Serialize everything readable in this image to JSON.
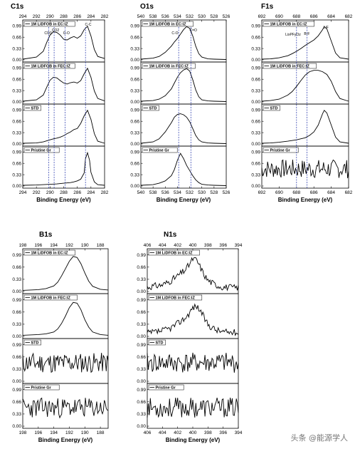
{
  "watermark": "头条 @能源学人",
  "chart_data": [
    {
      "type": "line",
      "element": "C1s",
      "x_range": [
        294,
        282
      ],
      "top_ticks": [
        294,
        292,
        290,
        288,
        286,
        284,
        282
      ],
      "bottom_ticks": [
        294,
        292,
        290,
        288,
        286,
        284,
        282
      ],
      "xlabel": "Binding Energy (eV)",
      "panels": [
        {
          "legend": "1M LiDFOB in EC:IZ",
          "ylim": [
            0,
            1.1
          ],
          "yticks": [
            "0.99",
            "0.66",
            "0.33",
            "0.00"
          ],
          "x": [
            294,
            292,
            291,
            290.5,
            290,
            289.5,
            289,
            288.5,
            288,
            287.5,
            287,
            286.5,
            286,
            285.5,
            285,
            284.5,
            284,
            283.5,
            283,
            282
          ],
          "y": [
            0.02,
            0.08,
            0.25,
            0.5,
            0.72,
            0.82,
            0.8,
            0.72,
            0.6,
            0.58,
            0.64,
            0.68,
            0.63,
            0.7,
            0.88,
            0.98,
            0.7,
            0.3,
            0.1,
            0.04
          ]
        },
        {
          "legend": "1M LiDFOB in FEC:IZ",
          "ylim": [
            0,
            1.1
          ],
          "yticks": [
            "0.99",
            "0.66",
            "0.33",
            "0.00"
          ],
          "x": [
            294,
            292,
            291,
            290.5,
            290,
            289.5,
            289,
            288.5,
            288,
            287.5,
            287,
            286.5,
            286,
            285.5,
            285,
            284.5,
            284,
            283.5,
            283,
            282
          ],
          "y": [
            0.02,
            0.06,
            0.2,
            0.42,
            0.63,
            0.72,
            0.7,
            0.62,
            0.55,
            0.52,
            0.56,
            0.58,
            0.55,
            0.62,
            0.82,
            0.98,
            0.72,
            0.32,
            0.1,
            0.03
          ]
        },
        {
          "legend": "STD",
          "ylim": [
            0,
            1.1
          ],
          "yticks": [
            "0.99",
            "0.66",
            "0.33",
            "0.00"
          ],
          "x": [
            294,
            292,
            291,
            290,
            289.5,
            289,
            288.5,
            288,
            287.5,
            287,
            286.5,
            286,
            285.5,
            285,
            284.5,
            284,
            283.5,
            283,
            282
          ],
          "y": [
            0.02,
            0.03,
            0.06,
            0.12,
            0.15,
            0.17,
            0.2,
            0.24,
            0.3,
            0.35,
            0.42,
            0.45,
            0.6,
            0.82,
            0.98,
            0.72,
            0.3,
            0.08,
            0.02
          ]
        },
        {
          "legend": "Pristine Gr",
          "ylim": [
            0,
            1.1
          ],
          "yticks": [
            "0.99",
            "0.66",
            "0.33",
            "0.00"
          ],
          "x": [
            294,
            292,
            290,
            289,
            288,
            287,
            286.5,
            286,
            285.5,
            285,
            284.8,
            284.5,
            284.2,
            284,
            283.5,
            283,
            282
          ],
          "y": [
            0.02,
            0.03,
            0.05,
            0.06,
            0.08,
            0.1,
            0.12,
            0.15,
            0.2,
            0.38,
            0.8,
            0.97,
            0.75,
            0.4,
            0.12,
            0.04,
            0.02
          ]
        }
      ],
      "vlines": [
        290.2,
        289.4,
        287.8,
        284.8
      ],
      "annotations": [
        "CO3",
        "CO2",
        "C-O",
        "C-C"
      ]
    },
    {
      "type": "line",
      "element": "O1s",
      "x_range": [
        540,
        526
      ],
      "top_ticks": [
        540,
        538,
        536,
        534,
        532,
        530,
        528,
        526
      ],
      "bottom_ticks": [
        540,
        538,
        536,
        534,
        532,
        530,
        528,
        526
      ],
      "xlabel": "Binding Energy (eV)",
      "panels": [
        {
          "legend": "1M LiDFOB in EC:IZ",
          "ylim": [
            0,
            1.1
          ],
          "yticks": [
            "0.99",
            "0.66",
            "0.33",
            "0.00"
          ],
          "x": [
            540,
            538,
            537,
            536,
            535,
            534.5,
            534,
            533.5,
            533,
            532.5,
            532,
            531.5,
            531,
            530.5,
            530,
            529,
            528,
            526
          ],
          "y": [
            0.02,
            0.05,
            0.1,
            0.22,
            0.4,
            0.52,
            0.62,
            0.75,
            0.88,
            0.97,
            0.92,
            0.7,
            0.4,
            0.18,
            0.08,
            0.03,
            0.02,
            0.01
          ]
        },
        {
          "legend": "1M LiDFOB in FEC:IZ",
          "ylim": [
            0,
            1.1
          ],
          "yticks": [
            "0.99",
            "0.66",
            "0.33",
            "0.00"
          ],
          "x": [
            540,
            538,
            537,
            536,
            535,
            534.5,
            534,
            533.5,
            533,
            532.5,
            532,
            531.5,
            531,
            530.5,
            530,
            529,
            528,
            526
          ],
          "y": [
            0.02,
            0.04,
            0.08,
            0.18,
            0.38,
            0.55,
            0.72,
            0.85,
            0.93,
            0.97,
            0.9,
            0.65,
            0.35,
            0.15,
            0.06,
            0.03,
            0.02,
            0.01
          ]
        },
        {
          "legend": "STD",
          "ylim": [
            0,
            1.1
          ],
          "yticks": [
            "0.99",
            "0.66",
            "0.33",
            "0.00"
          ],
          "x": [
            540,
            538,
            537,
            536,
            535,
            534.5,
            534,
            533.5,
            533,
            532.5,
            532,
            531.5,
            531,
            530.5,
            530,
            529,
            528,
            526
          ],
          "y": [
            0.02,
            0.06,
            0.15,
            0.35,
            0.62,
            0.78,
            0.86,
            0.88,
            0.85,
            0.78,
            0.65,
            0.45,
            0.25,
            0.12,
            0.06,
            0.03,
            0.02,
            0.01
          ]
        },
        {
          "legend": "Pristine Gr",
          "ylim": [
            0,
            1.1
          ],
          "yticks": [
            "0.99",
            "0.66",
            "0.33",
            "0.00"
          ],
          "x": [
            540,
            538,
            537,
            536,
            535,
            534.5,
            534,
            533.5,
            533,
            532.5,
            532,
            531.5,
            531,
            530.5,
            530,
            529,
            528,
            526
          ],
          "y": [
            0.02,
            0.04,
            0.08,
            0.15,
            0.3,
            0.48,
            0.75,
            0.95,
            0.8,
            0.6,
            0.45,
            0.3,
            0.18,
            0.1,
            0.05,
            0.03,
            0.02,
            0.01
          ]
        }
      ],
      "vlines": [
        533.8,
        531.8
      ],
      "annotations": [
        "C-O",
        "C=O"
      ]
    },
    {
      "type": "line",
      "element": "F1s",
      "x_range": [
        692,
        682
      ],
      "top_ticks": [
        692,
        690,
        688,
        686,
        684,
        682
      ],
      "bottom_ticks": [
        692,
        690,
        688,
        686,
        684,
        682
      ],
      "xlabel": "Binding Energy (eV)",
      "panels": [
        {
          "legend": "1M LiDFOB in EC:IZ",
          "ylim": [
            0,
            1.1
          ],
          "yticks": [
            "0.99",
            "0.66",
            "0.33",
            "0.00"
          ],
          "x": [
            692,
            691,
            690,
            689,
            688.5,
            688,
            687.5,
            687,
            686.5,
            686,
            685.5,
            685,
            684.8,
            684.5,
            684,
            683.5,
            683,
            682
          ],
          "y": [
            0.02,
            0.03,
            0.06,
            0.12,
            0.18,
            0.25,
            0.33,
            0.42,
            0.5,
            0.58,
            0.7,
            0.88,
            0.97,
            0.9,
            0.55,
            0.2,
            0.06,
            0.02
          ]
        },
        {
          "legend": "1M LiDFOB in FEC:IZ",
          "ylim": [
            0,
            1.1
          ],
          "yticks": [
            "0.99",
            "0.66",
            "0.33",
            "0.00"
          ],
          "x": [
            692,
            691,
            690,
            689,
            688.5,
            688,
            687.5,
            687,
            686.5,
            686,
            685.5,
            685,
            684.5,
            684,
            683.5,
            683,
            682
          ],
          "y": [
            0.02,
            0.04,
            0.08,
            0.2,
            0.3,
            0.45,
            0.62,
            0.78,
            0.88,
            0.92,
            0.92,
            0.88,
            0.8,
            0.6,
            0.3,
            0.1,
            0.02
          ]
        },
        {
          "legend": "STD",
          "ylim": [
            0,
            1.1
          ],
          "yticks": [
            "0.99",
            "0.66",
            "0.33",
            "0.00"
          ],
          "x": [
            692,
            691,
            690,
            689,
            688,
            687,
            686.5,
            686,
            685.5,
            685,
            684.8,
            684.5,
            684,
            683.5,
            683,
            682
          ],
          "y": [
            0.02,
            0.03,
            0.05,
            0.08,
            0.12,
            0.18,
            0.25,
            0.35,
            0.55,
            0.88,
            0.98,
            0.9,
            0.55,
            0.2,
            0.06,
            0.02
          ]
        },
        {
          "legend": "Pristine Gr",
          "ylim": [
            0,
            1.1
          ],
          "yticks": [
            "0.99",
            "0.66",
            "0.33",
            "0.00"
          ],
          "noise": true,
          "noise_seed": 7
        }
      ],
      "vlines": [
        688,
        686.8
      ],
      "annotations": [
        "LixPFyOz",
        "B-F",
        "LiF"
      ]
    },
    {
      "type": "line",
      "element": "B1s",
      "x_range": [
        198,
        187
      ],
      "top_ticks": [
        198,
        196,
        194,
        192,
        190,
        188
      ],
      "bottom_ticks": [
        198,
        196,
        194,
        192,
        190,
        188
      ],
      "xlabel": "Binding Energy (eV)",
      "panels": [
        {
          "legend": "1M LiDFOB in EC:IZ",
          "ylim": [
            0,
            1.1
          ],
          "yticks": [
            "0.99",
            "0.66",
            "0.33",
            "0.00"
          ],
          "x": [
            198,
            196,
            195,
            194,
            193.5,
            193,
            192.5,
            192,
            191.5,
            191,
            190.5,
            190,
            189.5,
            189,
            188,
            187
          ],
          "y": [
            0.03,
            0.05,
            0.08,
            0.15,
            0.25,
            0.42,
            0.62,
            0.82,
            0.95,
            0.92,
            0.75,
            0.5,
            0.28,
            0.14,
            0.06,
            0.04
          ]
        },
        {
          "legend": "1M LiDFOB in FEC:IZ",
          "ylim": [
            0,
            1.1
          ],
          "yticks": [
            "0.99",
            "0.66",
            "0.33",
            "0.00"
          ],
          "x": [
            198,
            196,
            195,
            194,
            193.5,
            193,
            192.5,
            192,
            191.5,
            191,
            190.5,
            190,
            189.5,
            189,
            188,
            187
          ],
          "y": [
            0.03,
            0.05,
            0.07,
            0.12,
            0.2,
            0.35,
            0.55,
            0.78,
            0.92,
            0.9,
            0.72,
            0.45,
            0.25,
            0.12,
            0.05,
            0.03
          ]
        },
        {
          "legend": "STD",
          "ylim": [
            0,
            1.1
          ],
          "yticks": [
            "0.99",
            "0.66",
            "0.33",
            "0.00"
          ],
          "noise": true,
          "noise_seed": 11
        },
        {
          "legend": "Pristine Gr",
          "ylim": [
            0,
            1.1
          ],
          "yticks": [
            "0.99",
            "0.66",
            "0.33",
            "0.00"
          ],
          "noise": true,
          "noise_seed": 23
        }
      ],
      "vlines": [],
      "annotations": []
    },
    {
      "type": "line",
      "element": "N1s",
      "x_range": [
        406,
        394
      ],
      "top_ticks": [
        406,
        404,
        402,
        400,
        398,
        396,
        394
      ],
      "bottom_ticks": [
        406,
        404,
        402,
        400,
        398,
        396,
        394
      ],
      "xlabel": "Binding Energy (eV)",
      "panels": [
        {
          "legend": "1M LiDFOB in EC:IZ",
          "ylim": [
            0,
            1.1
          ],
          "yticks": [
            "0.99",
            "0.66",
            "0.33",
            "0.00"
          ],
          "noisy_peak": true,
          "noise_seed": 31,
          "x": [
            406,
            404,
            403,
            402,
            401,
            400.5,
            400,
            399.5,
            399,
            398.5,
            398,
            397,
            396,
            394
          ],
          "y": [
            0.12,
            0.18,
            0.28,
            0.42,
            0.58,
            0.72,
            0.88,
            0.85,
            0.65,
            0.45,
            0.3,
            0.18,
            0.12,
            0.1
          ]
        },
        {
          "legend": "1M LiDFOB in FEC:IZ",
          "ylim": [
            0,
            1.1
          ],
          "yticks": [
            "0.99",
            "0.66",
            "0.33",
            "0.00"
          ],
          "noisy_peak": true,
          "noise_seed": 37,
          "x": [
            406,
            404,
            403,
            402,
            401,
            400.5,
            400,
            399.5,
            399,
            398.5,
            398,
            397,
            396,
            394
          ],
          "y": [
            0.08,
            0.15,
            0.22,
            0.35,
            0.5,
            0.62,
            0.78,
            0.82,
            0.7,
            0.5,
            0.32,
            0.18,
            0.12,
            0.1
          ]
        },
        {
          "legend": "STD",
          "ylim": [
            0,
            1.1
          ],
          "yticks": [
            "0.99",
            "0.66",
            "0.33",
            "0.00"
          ],
          "noise": true,
          "noise_seed": 41
        },
        {
          "legend": "Pristine Gr",
          "ylim": [
            0,
            1.1
          ],
          "yticks": [
            "0.99",
            "0.66",
            "0.33",
            "0.00"
          ],
          "noise": true,
          "noise_seed": 53
        }
      ],
      "vlines": [],
      "annotations": []
    }
  ]
}
